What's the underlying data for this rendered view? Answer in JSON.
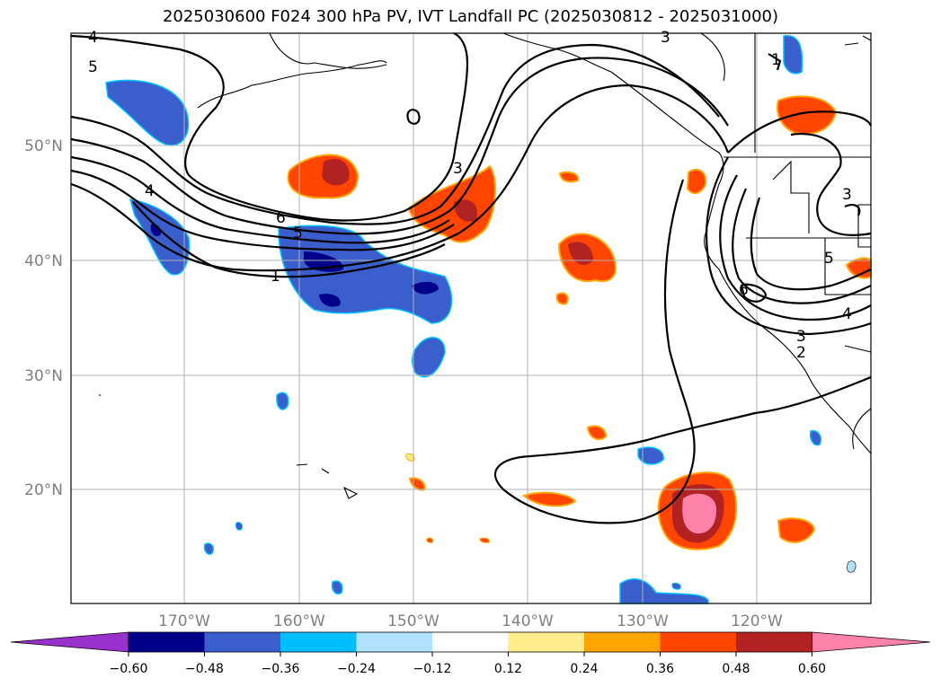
{
  "title": "2025030600 F024 300 hPa PV, IVT Landfall PC (2025030812 - 2025031000)",
  "lat_labels": [
    "50°N",
    "40°N",
    "30°N",
    "20°N"
  ],
  "lon_labels": [
    "170°W",
    "160°W",
    "150°W",
    "140°W",
    "130°W",
    "120°W"
  ],
  "colorbar": {
    "ticks": [
      "−0.60",
      "−0.48",
      "−0.36",
      "−0.24",
      "−0.12",
      "0.12",
      "0.24",
      "0.36",
      "0.48",
      "0.60"
    ],
    "colors": [
      "#9932cc",
      "#00008b",
      "#3a5fcd",
      "#00bfff",
      "#b0e2ff",
      "#ffffff",
      "#ffec8b",
      "#ffa500",
      "#ff4500",
      "#b22222",
      "#ff82ab"
    ]
  },
  "contour_labels": [
    "4",
    "5",
    "3",
    "1",
    "3",
    "6",
    "5",
    "1",
    "4",
    "3",
    "5",
    "6",
    "4",
    "3",
    "2"
  ],
  "colors": {
    "contour": "#000000",
    "grid": "#b0b0b0",
    "coast": "#000000"
  }
}
